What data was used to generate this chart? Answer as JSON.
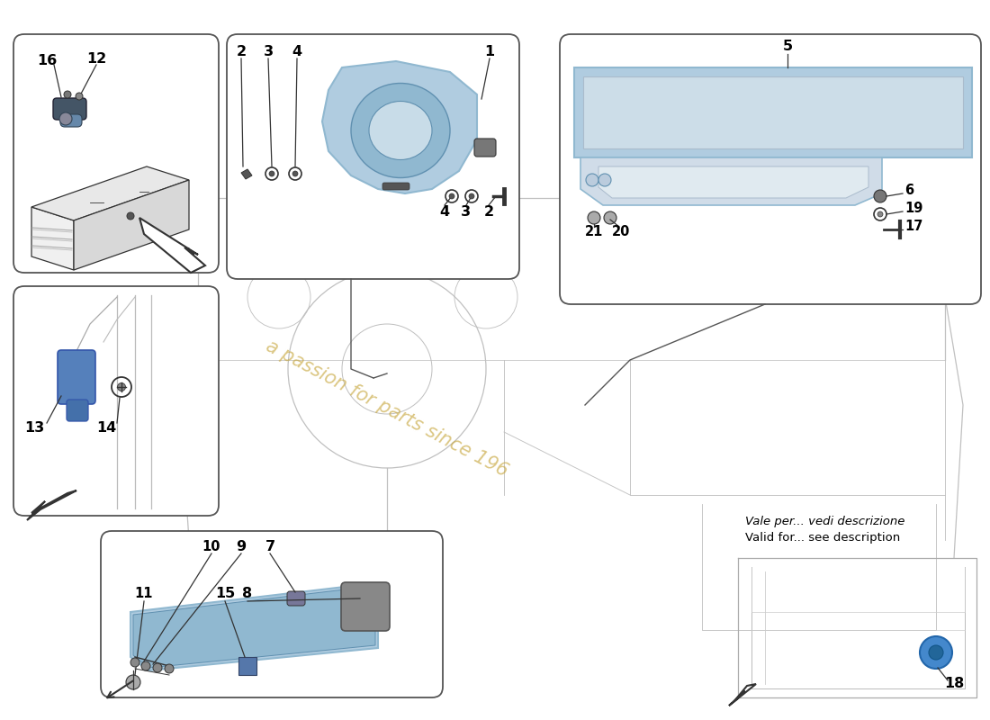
{
  "bg_color": "#ffffff",
  "box_edge_color": "#555555",
  "line_color": "#333333",
  "part_blue": "#b0cce0",
  "part_blue_mid": "#90b8d0",
  "part_blue_dark": "#6090b0",
  "watermark_color": "#c8a840",
  "watermark_text": "a passion for parts since 196",
  "car_line_color": "#c0c0c0",
  "label_fs": 11.5,
  "small_label_fs": 10.5
}
